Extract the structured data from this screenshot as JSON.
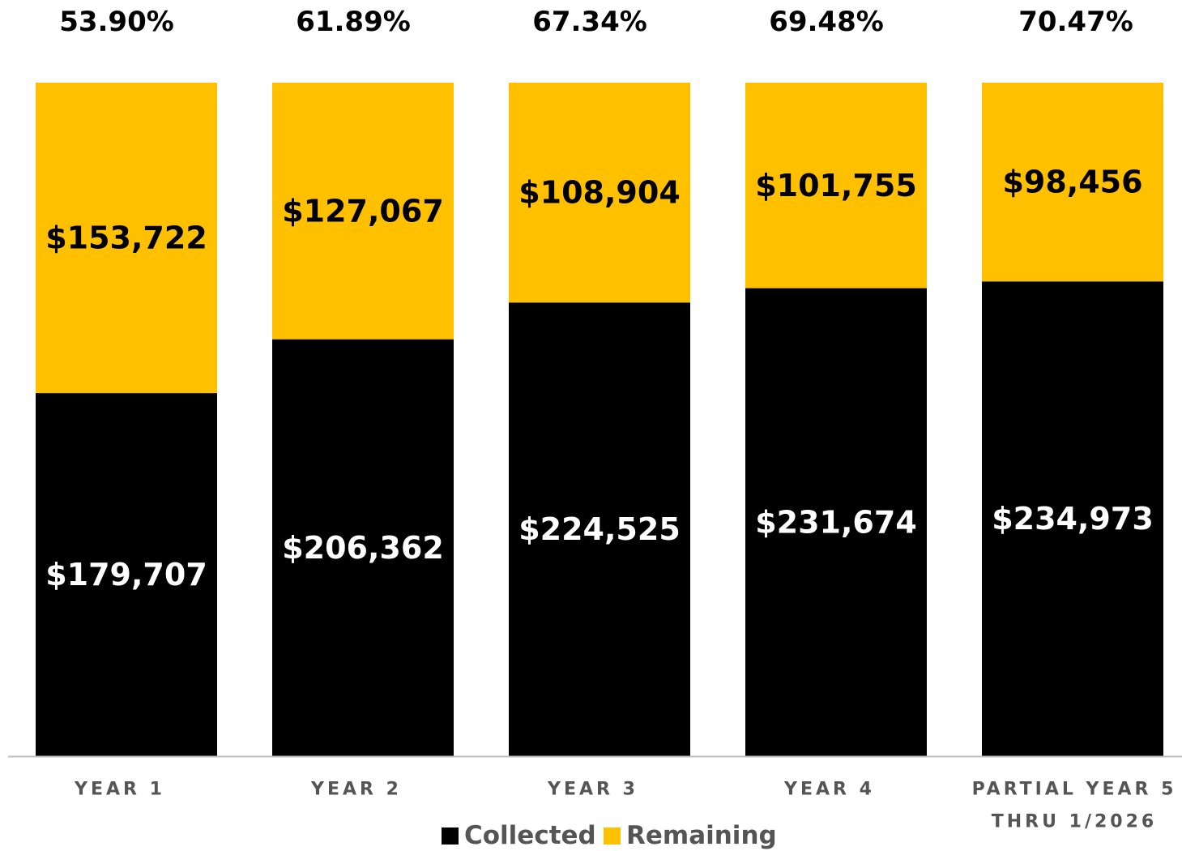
{
  "chart_data": {
    "type": "bar",
    "stacked": true,
    "normalized": true,
    "categories": [
      [
        "YEAR 1"
      ],
      [
        "YEAR 2"
      ],
      [
        "YEAR 3"
      ],
      [
        "YEAR 4"
      ],
      [
        "PARTIAL YEAR 5",
        "THRU 1/2026"
      ]
    ],
    "percent_labels": [
      "53.90%",
      "61.89%",
      "67.34%",
      "69.48%",
      "70.47%"
    ],
    "series": [
      {
        "name": "Collected",
        "color": "#000000",
        "values": [
          179707,
          206362,
          224525,
          231674,
          234973
        ],
        "labels": [
          "$179,707",
          "$206,362",
          "$224,525",
          "$231,674",
          "$234,973"
        ]
      },
      {
        "name": "Remaining",
        "color": "#FFC000",
        "values": [
          153722,
          127067,
          108904,
          101755,
          98456
        ],
        "labels": [
          "$153,722",
          "$127,067",
          "$108,904",
          "$101,755",
          "$98,456"
        ]
      }
    ],
    "ylim": [
      0,
      1
    ],
    "grid": false,
    "legend_position": "bottom"
  }
}
